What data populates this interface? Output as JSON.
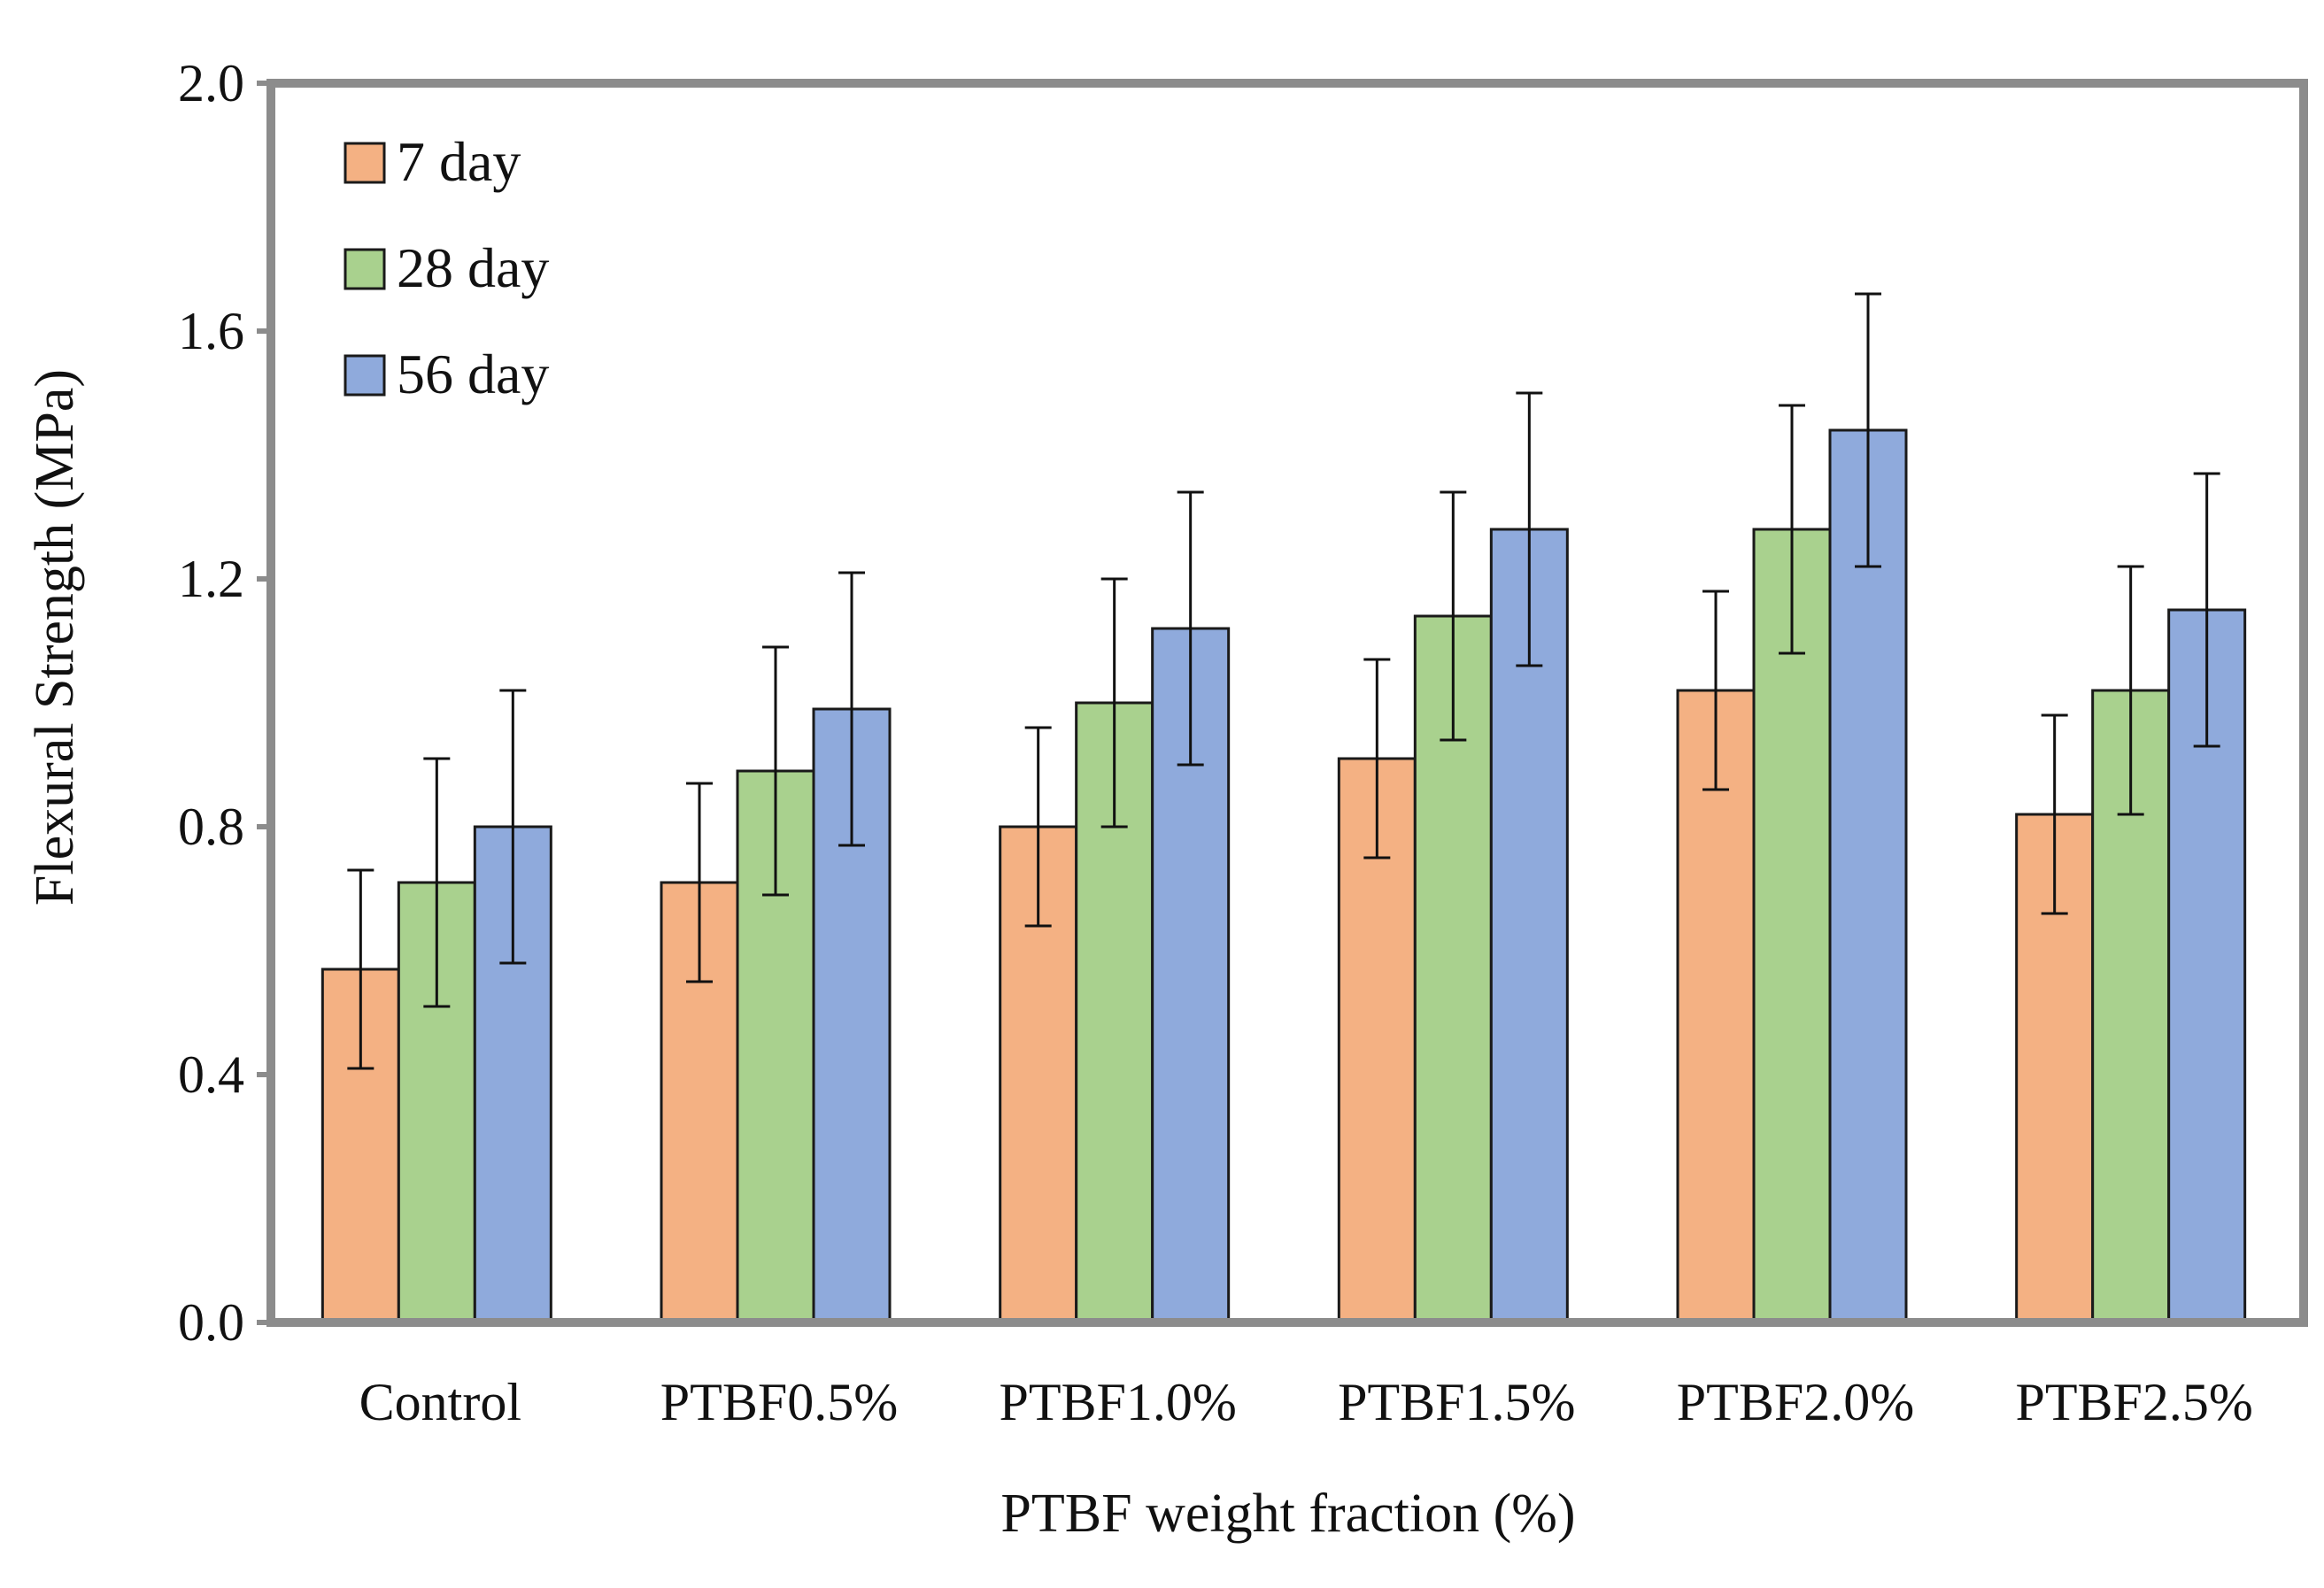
{
  "chart_data": {
    "type": "bar",
    "title": "",
    "xlabel": "PTBF weight fraction (%)",
    "ylabel": "Flexural Strength (MPa)",
    "ylim": [
      0,
      2.0
    ],
    "yticks": [
      "0.0",
      "0.4",
      "0.8",
      "1.2",
      "1.6",
      "2.0"
    ],
    "ytick_values": [
      0,
      0.4,
      0.8,
      1.2,
      1.6,
      2.0
    ],
    "categories": [
      "Control",
      "PTBF0.5%",
      "PTBF1.0%",
      "PTBF1.5%",
      "PTBF2.0%",
      "PTBF2.5%"
    ],
    "series": [
      {
        "name": "7 day",
        "color": "#F4B183",
        "values": [
          0.57,
          0.71,
          0.8,
          0.91,
          1.02,
          0.82
        ],
        "error": [
          0.16,
          0.16,
          0.16,
          0.16,
          0.16,
          0.16
        ]
      },
      {
        "name": "28 day",
        "color": "#A9D18E",
        "values": [
          0.71,
          0.89,
          1.0,
          1.14,
          1.28,
          1.02
        ],
        "error": [
          0.2,
          0.2,
          0.2,
          0.2,
          0.2,
          0.2
        ]
      },
      {
        "name": "56 day",
        "color": "#8FAADC",
        "values": [
          0.8,
          0.99,
          1.12,
          1.28,
          1.44,
          1.15
        ],
        "error": [
          0.22,
          0.22,
          0.22,
          0.22,
          0.22,
          0.22
        ]
      }
    ],
    "legend_position": "top-left",
    "grid": false,
    "frame_color": "#8C8C8C"
  }
}
